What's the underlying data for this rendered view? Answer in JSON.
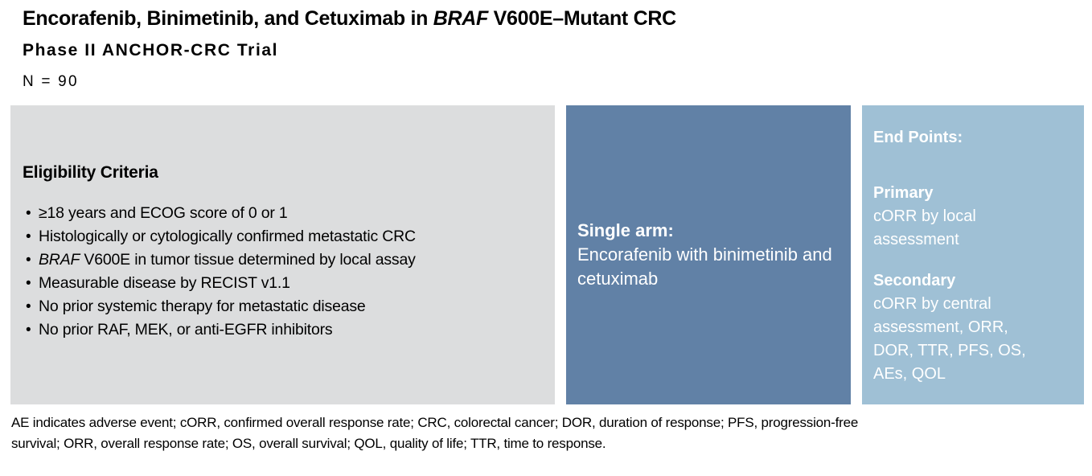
{
  "colors": {
    "eligibility_bg": "#dcddde",
    "arm_bg": "#6181a6",
    "endpoints_bg": "#9fc0d5",
    "text_dark": "#000000",
    "text_light": "#ffffff"
  },
  "header": {
    "title_prefix": "Encorafenib, Binimetinib, and Cetuximab in ",
    "title_italic": "BRAF",
    "title_suffix": " V600E–Mutant CRC",
    "subtitle": "Phase II ANCHOR-CRC Trial",
    "sample_size": "N = 90"
  },
  "eligibility": {
    "heading": "Eligibility Criteria",
    "bullets": [
      {
        "text": "≥18 years and ECOG score of 0 or 1"
      },
      {
        "text": "Histologically or cytologically confirmed metastatic CRC"
      },
      {
        "italic": "BRAF",
        "text": " V600E in tumor tissue determined by local assay"
      },
      {
        "text": "Measurable disease by RECIST v1.1"
      },
      {
        "text": "No prior systemic therapy for metastatic disease"
      },
      {
        "text": "No prior RAF, MEK, or anti-EGFR inhibitors"
      }
    ]
  },
  "arm": {
    "label": "Single arm:",
    "text": "Encorafenib with binimetinib and cetuximab"
  },
  "endpoints": {
    "heading": "End Points:",
    "primary_label": "Primary",
    "primary_text": "cORR by local assessment",
    "secondary_label": "Secondary",
    "secondary_text": "cORR by central assessment, ORR, DOR, TTR, PFS, OS, AEs, QOL"
  },
  "footnote": {
    "lines": [
      "AE indicates adverse event; cORR, confirmed overall response rate; CRC, colorectal cancer; DOR, duration of response; PFS, progression-free",
      "survival; ORR, overall response rate; OS, overall survival; QOL, quality of life; TTR, time to response."
    ]
  }
}
